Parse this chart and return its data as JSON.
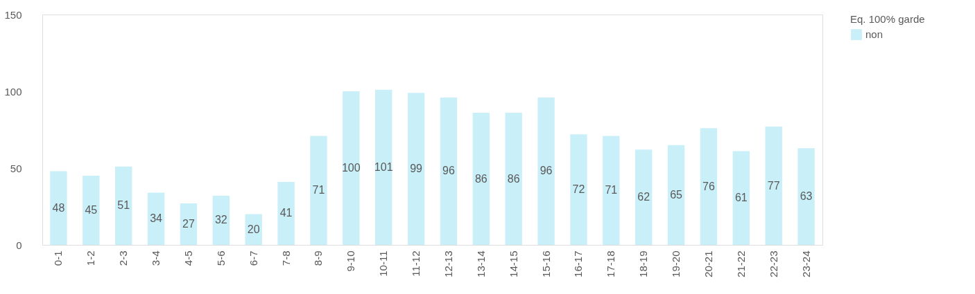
{
  "chart_data": {
    "type": "bar",
    "categories": [
      "0-1",
      "1-2",
      "2-3",
      "3-4",
      "4-5",
      "5-6",
      "6-7",
      "7-8",
      "8-9",
      "9-10",
      "10-11",
      "11-12",
      "12-13",
      "13-14",
      "14-15",
      "15-16",
      "16-17",
      "17-18",
      "18-19",
      "19-20",
      "20-21",
      "21-22",
      "22-23",
      "23-24"
    ],
    "series": [
      {
        "name": "non",
        "color": "#c9eff8",
        "values": [
          48,
          45,
          51,
          34,
          27,
          32,
          20,
          41,
          71,
          100,
          101,
          99,
          96,
          86,
          86,
          96,
          72,
          71,
          62,
          65,
          76,
          61,
          77,
          63
        ]
      }
    ],
    "legend_title": "Eq. 100% garde",
    "ylim": [
      0,
      150
    ],
    "yticks": [
      0,
      50,
      100,
      150
    ],
    "data_labels": true,
    "grid": false,
    "legend": "right"
  }
}
